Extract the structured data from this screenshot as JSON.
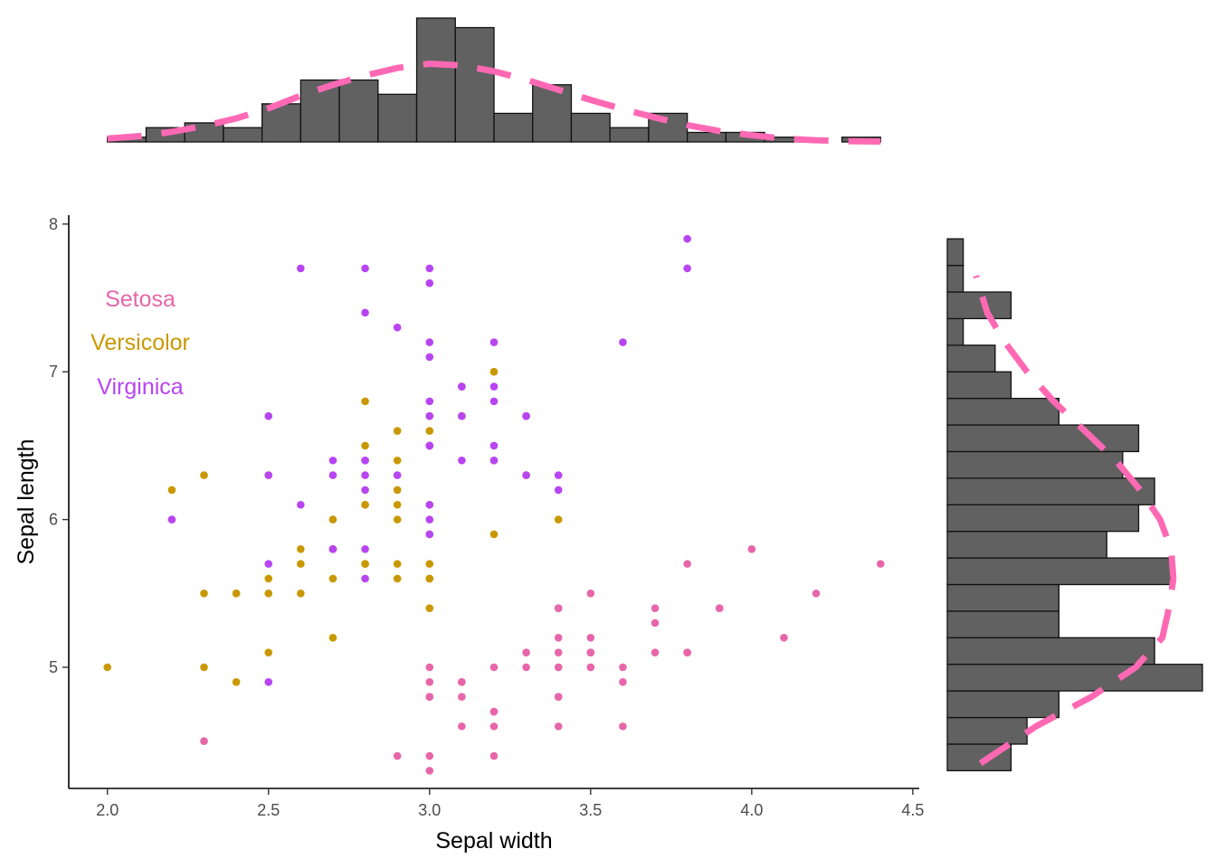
{
  "chart_data": {
    "type": "scatter",
    "xlabel": "Sepal width",
    "ylabel": "Sepal length",
    "xlim": [
      1.88,
      4.52
    ],
    "ylim": [
      4.18,
      8.06
    ],
    "xticks": [
      2.0,
      2.5,
      3.0,
      3.5,
      4.0,
      4.5
    ],
    "xtick_labels": [
      "2.0",
      "2.5",
      "3.0",
      "3.5",
      "4.0",
      "4.5"
    ],
    "yticks": [
      5,
      6,
      7,
      8
    ],
    "ytick_labels": [
      "5",
      "6",
      "7",
      "8"
    ],
    "grid": false,
    "legend": {
      "placement": "top-left"
    },
    "series": [
      {
        "name": "Setosa",
        "color": "#E766A8",
        "points": [
          [
            3.5,
            5.1
          ],
          [
            3.0,
            4.9
          ],
          [
            3.2,
            4.7
          ],
          [
            3.1,
            4.6
          ],
          [
            3.6,
            5.0
          ],
          [
            3.9,
            5.4
          ],
          [
            3.4,
            4.6
          ],
          [
            3.4,
            5.0
          ],
          [
            2.9,
            4.4
          ],
          [
            3.1,
            4.9
          ],
          [
            3.7,
            5.4
          ],
          [
            3.4,
            4.8
          ],
          [
            3.0,
            4.8
          ],
          [
            3.0,
            4.3
          ],
          [
            4.0,
            5.8
          ],
          [
            4.4,
            5.7
          ],
          [
            3.9,
            5.4
          ],
          [
            3.5,
            5.1
          ],
          [
            3.8,
            5.7
          ],
          [
            3.8,
            5.1
          ],
          [
            3.4,
            5.4
          ],
          [
            3.7,
            5.1
          ],
          [
            3.6,
            4.6
          ],
          [
            3.3,
            5.1
          ],
          [
            3.4,
            4.8
          ],
          [
            3.0,
            5.0
          ],
          [
            3.4,
            5.0
          ],
          [
            3.5,
            5.2
          ],
          [
            3.4,
            5.2
          ],
          [
            3.2,
            4.7
          ],
          [
            3.1,
            4.8
          ],
          [
            3.4,
            5.4
          ],
          [
            4.1,
            5.2
          ],
          [
            4.2,
            5.5
          ],
          [
            3.1,
            4.9
          ],
          [
            3.2,
            5.0
          ],
          [
            3.5,
            5.5
          ],
          [
            3.6,
            4.9
          ],
          [
            3.0,
            4.4
          ],
          [
            3.4,
            5.1
          ],
          [
            3.5,
            5.0
          ],
          [
            2.3,
            4.5
          ],
          [
            3.2,
            4.4
          ],
          [
            3.5,
            5.0
          ],
          [
            3.8,
            5.1
          ],
          [
            3.0,
            4.8
          ],
          [
            3.8,
            5.1
          ],
          [
            3.2,
            4.6
          ],
          [
            3.7,
            5.3
          ],
          [
            3.3,
            5.0
          ]
        ]
      },
      {
        "name": "Versicolor",
        "color": "#C99800",
        "points": [
          [
            3.2,
            7.0
          ],
          [
            3.2,
            6.4
          ],
          [
            3.1,
            6.9
          ],
          [
            2.3,
            5.5
          ],
          [
            2.8,
            6.5
          ],
          [
            2.8,
            5.7
          ],
          [
            3.3,
            6.3
          ],
          [
            2.4,
            4.9
          ],
          [
            2.9,
            6.6
          ],
          [
            2.7,
            5.2
          ],
          [
            2.0,
            5.0
          ],
          [
            3.0,
            5.9
          ],
          [
            2.2,
            6.0
          ],
          [
            2.9,
            6.1
          ],
          [
            2.9,
            5.6
          ],
          [
            3.1,
            6.7
          ],
          [
            3.0,
            5.6
          ],
          [
            2.7,
            5.8
          ],
          [
            2.2,
            6.2
          ],
          [
            2.5,
            5.6
          ],
          [
            3.2,
            5.9
          ],
          [
            2.8,
            6.1
          ],
          [
            2.5,
            6.3
          ],
          [
            2.8,
            6.1
          ],
          [
            2.9,
            6.4
          ],
          [
            3.0,
            6.6
          ],
          [
            2.8,
            6.8
          ],
          [
            3.0,
            6.7
          ],
          [
            2.9,
            6.0
          ],
          [
            2.6,
            5.7
          ],
          [
            2.4,
            5.5
          ],
          [
            2.4,
            5.5
          ],
          [
            2.7,
            5.8
          ],
          [
            2.7,
            6.0
          ],
          [
            3.0,
            5.4
          ],
          [
            3.4,
            6.0
          ],
          [
            3.1,
            6.7
          ],
          [
            2.3,
            6.3
          ],
          [
            3.0,
            5.6
          ],
          [
            2.5,
            5.5
          ],
          [
            2.6,
            5.5
          ],
          [
            3.0,
            6.1
          ],
          [
            2.6,
            5.8
          ],
          [
            2.3,
            5.0
          ],
          [
            2.7,
            5.6
          ],
          [
            3.0,
            5.7
          ],
          [
            2.9,
            5.7
          ],
          [
            2.9,
            6.2
          ],
          [
            2.5,
            5.1
          ],
          [
            2.8,
            5.7
          ]
        ]
      },
      {
        "name": "Virginica",
        "color": "#B844F2",
        "points": [
          [
            3.3,
            6.3
          ],
          [
            2.7,
            5.8
          ],
          [
            3.0,
            7.1
          ],
          [
            2.9,
            6.3
          ],
          [
            3.0,
            6.5
          ],
          [
            3.0,
            7.6
          ],
          [
            2.5,
            4.9
          ],
          [
            2.9,
            7.3
          ],
          [
            2.5,
            6.7
          ],
          [
            3.6,
            7.2
          ],
          [
            3.2,
            6.5
          ],
          [
            2.7,
            6.4
          ],
          [
            3.0,
            6.8
          ],
          [
            2.5,
            5.7
          ],
          [
            2.8,
            5.8
          ],
          [
            3.2,
            6.4
          ],
          [
            3.0,
            6.5
          ],
          [
            3.8,
            7.7
          ],
          [
            2.6,
            7.7
          ],
          [
            2.2,
            6.0
          ],
          [
            3.2,
            6.9
          ],
          [
            2.8,
            5.6
          ],
          [
            2.8,
            7.7
          ],
          [
            2.7,
            6.3
          ],
          [
            3.3,
            6.7
          ],
          [
            3.2,
            7.2
          ],
          [
            2.8,
            6.2
          ],
          [
            3.0,
            6.1
          ],
          [
            2.8,
            6.4
          ],
          [
            3.0,
            7.2
          ],
          [
            2.8,
            7.4
          ],
          [
            3.8,
            7.9
          ],
          [
            2.8,
            6.4
          ],
          [
            2.8,
            6.3
          ],
          [
            2.6,
            6.1
          ],
          [
            3.0,
            7.7
          ],
          [
            3.4,
            6.3
          ],
          [
            3.1,
            6.4
          ],
          [
            3.0,
            6.0
          ],
          [
            3.1,
            6.9
          ],
          [
            3.1,
            6.7
          ],
          [
            3.1,
            6.9
          ],
          [
            2.7,
            5.8
          ],
          [
            3.2,
            6.8
          ],
          [
            3.3,
            6.7
          ],
          [
            3.0,
            6.7
          ],
          [
            2.5,
            6.3
          ],
          [
            3.0,
            6.5
          ],
          [
            3.4,
            6.2
          ],
          [
            3.0,
            5.9
          ]
        ]
      }
    ],
    "top_histogram": {
      "axis": "Sepal width",
      "bin_edges": [
        2.0,
        2.12,
        2.24,
        2.36,
        2.48,
        2.6,
        2.72,
        2.84,
        2.96,
        3.08,
        3.2,
        3.32,
        3.44,
        3.56,
        3.68,
        3.8,
        3.92,
        4.04,
        4.16,
        4.28,
        4.4
      ],
      "counts": [
        1,
        3,
        4,
        3,
        8,
        13,
        13,
        10,
        26,
        24,
        6,
        12,
        6,
        3,
        6,
        2,
        2,
        1,
        0,
        1
      ],
      "density_curve": {
        "color": "#FF69B4",
        "dashed": true,
        "x": [
          2.0,
          2.1,
          2.2,
          2.3,
          2.4,
          2.5,
          2.6,
          2.7,
          2.8,
          2.9,
          3.0,
          3.1,
          3.2,
          3.3,
          3.4,
          3.5,
          3.6,
          3.7,
          3.8,
          3.9,
          4.0,
          4.1,
          4.2,
          4.3,
          4.4
        ],
        "y": [
          0.04,
          0.07,
          0.12,
          0.19,
          0.28,
          0.4,
          0.55,
          0.68,
          0.79,
          0.88,
          0.93,
          0.91,
          0.84,
          0.74,
          0.62,
          0.5,
          0.39,
          0.29,
          0.2,
          0.13,
          0.08,
          0.04,
          0.02,
          0.01,
          0.005
        ]
      }
    },
    "right_histogram": {
      "axis": "Sepal length",
      "bin_edges": [
        4.3,
        4.48,
        4.66,
        4.84,
        5.02,
        5.2,
        5.38,
        5.56,
        5.74,
        5.92,
        6.1,
        6.28,
        6.46,
        6.64,
        6.82,
        7.0,
        7.18,
        7.36,
        7.54,
        7.72,
        7.9
      ],
      "counts": [
        4,
        5,
        7,
        16,
        13,
        7,
        7,
        14,
        10,
        12,
        13,
        11,
        12,
        7,
        4,
        3,
        1,
        4,
        1,
        1
      ],
      "density_curve": {
        "color": "#FF69B4",
        "dashed": true,
        "y": [
          4.35,
          4.6,
          4.8,
          5.0,
          5.2,
          5.4,
          5.6,
          5.8,
          6.0,
          6.2,
          6.4,
          6.6,
          6.8,
          7.0,
          7.2,
          7.4,
          7.65
        ],
        "x": [
          0.15,
          0.4,
          0.65,
          0.85,
          0.97,
          1.0,
          1.02,
          1.01,
          0.96,
          0.87,
          0.76,
          0.62,
          0.48,
          0.36,
          0.26,
          0.18,
          0.13
        ]
      }
    }
  }
}
